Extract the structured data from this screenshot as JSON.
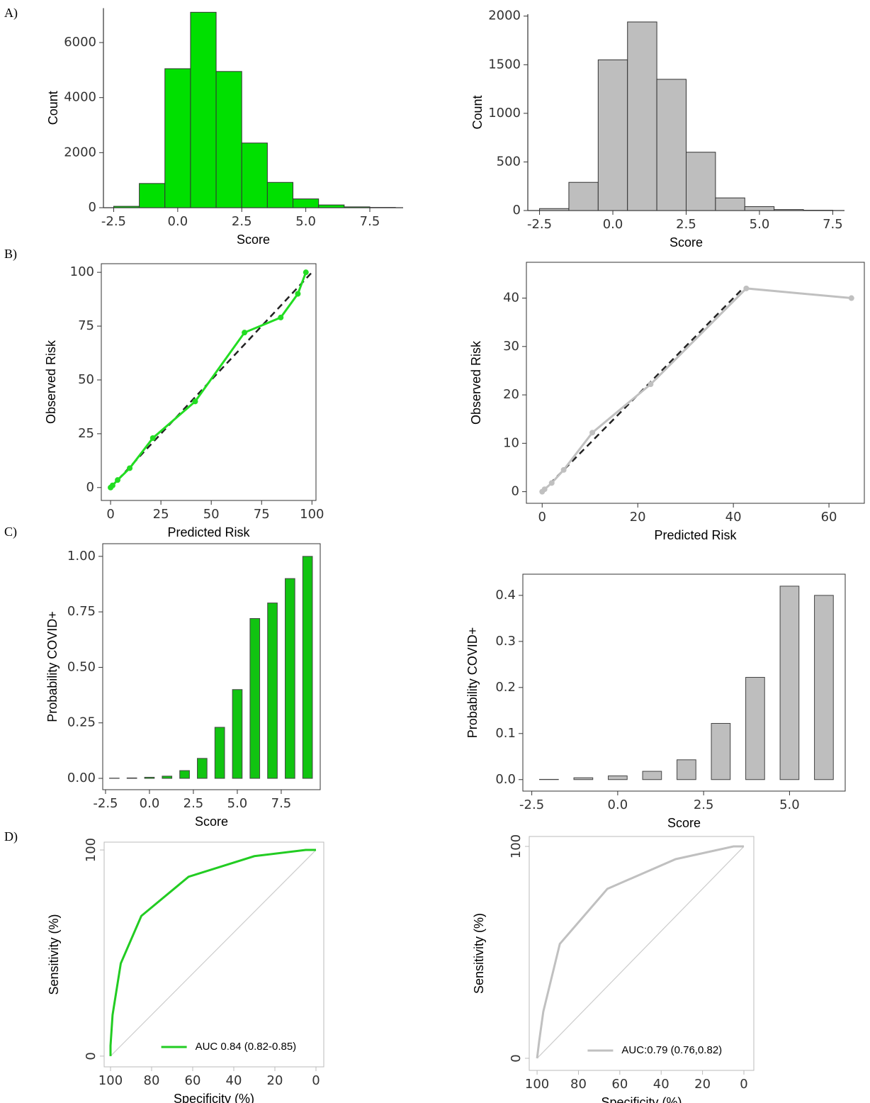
{
  "panel_labels": [
    "A)",
    "B)",
    "C)",
    "D)"
  ],
  "chart_data": [
    {
      "type": "histogram",
      "xlabel": "Score",
      "ylabel": "Count",
      "color": "#00e000",
      "bins": [
        -2.5,
        -1.5,
        -0.5,
        0.5,
        1.5,
        2.5,
        3.5,
        4.5,
        5.5,
        6.5,
        7.5,
        8.5
      ],
      "values": [
        50,
        880,
        5050,
        7100,
        4950,
        2350,
        920,
        320,
        100,
        30,
        10
      ],
      "xlim": [
        -2.9,
        8.8
      ],
      "xticks": [
        -2.5,
        {
          "value": 0,
          "label": "0.0"
        },
        2.5,
        {
          "value": 5,
          "label": "5.0"
        },
        7.5
      ],
      "ylim": [
        0,
        7250
      ],
      "yticks": [
        0,
        2000,
        4000,
        6000
      ]
    },
    {
      "type": "histogram",
      "xlabel": "Score",
      "ylabel": "Count",
      "color": "#bebebe",
      "bins": [
        -2.5,
        -1.5,
        -0.5,
        0.5,
        1.5,
        2.5,
        3.5,
        4.5,
        5.5,
        6.5,
        7.5
      ],
      "values": [
        20,
        290,
        1550,
        1940,
        1350,
        600,
        130,
        40,
        10,
        3
      ],
      "xlim": [
        -2.9,
        7.9
      ],
      "xticks": [
        -2.5,
        {
          "value": 0,
          "label": "0.0"
        },
        2.5,
        {
          "value": 5,
          "label": "5.0"
        },
        7.5
      ],
      "ylim": [
        0,
        2020
      ],
      "yticks": [
        0,
        500,
        1000,
        1500,
        2000
      ]
    },
    {
      "type": "line",
      "xlabel": "Predicted Risk",
      "ylabel": "Observed Risk",
      "markers": true,
      "reference_line": "identity",
      "x": [
        0,
        1,
        3.5,
        9.5,
        21,
        42,
        66.5,
        84.5,
        93,
        97
      ],
      "series": [
        {
          "color": "#22dd22",
          "values": [
            0,
            1,
            3.5,
            9,
            23,
            40,
            72,
            79,
            90,
            100
          ]
        }
      ],
      "xlim": [
        -4.6,
        102
      ],
      "xticks": [
        0,
        25,
        50,
        75,
        100
      ],
      "ylim": [
        -6,
        104
      ],
      "yticks": [
        0,
        25,
        50,
        75,
        100
      ]
    },
    {
      "type": "line",
      "xlabel": "Predicted Risk",
      "ylabel": "Observed Risk",
      "markers": true,
      "reference_line": "identity",
      "x": [
        0,
        0.5,
        2,
        4.5,
        10.5,
        22.7,
        42.7,
        64.7
      ],
      "series": [
        {
          "color": "#c0c0c0",
          "values": [
            0,
            0.5,
            1.8,
            4.5,
            12.2,
            22.2,
            42,
            40
          ]
        }
      ],
      "xlim": [
        -3.3,
        67.4
      ],
      "xticks": [
        0,
        20,
        40,
        60
      ],
      "ylim": [
        -2.4,
        47.4
      ],
      "yticks": [
        0,
        10,
        20,
        30,
        40
      ]
    },
    {
      "type": "bar",
      "xlabel": "Score",
      "ylabel": "Probability COVID+",
      "color": "#11c411",
      "x": [
        -2,
        -1,
        0,
        1,
        2,
        3,
        4,
        5,
        6,
        7,
        8,
        9
      ],
      "values": [
        0.001,
        0.002,
        0.005,
        0.01,
        0.035,
        0.09,
        0.23,
        0.4,
        0.72,
        0.79,
        0.9,
        1.0
      ],
      "xlim": [
        -2.66,
        9.72
      ],
      "xticks": [
        -2.5,
        {
          "value": 0,
          "label": "0.0"
        },
        2.5,
        {
          "value": 5,
          "label": "5.0"
        },
        7.5
      ],
      "ylim": [
        -0.051,
        1.057
      ],
      "yticks": [
        {
          "value": 0,
          "label": "0.00"
        },
        0.25,
        {
          "value": 0.5,
          "label": "0.50"
        },
        0.75,
        {
          "value": 1,
          "label": "1.00"
        }
      ]
    },
    {
      "type": "bar",
      "xlabel": "Score",
      "ylabel": "Probability COVID+",
      "color": "#bebebe",
      "x": [
        -2,
        -1,
        0,
        1,
        2,
        3,
        4,
        5,
        6
      ],
      "values": [
        0.0005,
        0.004,
        0.008,
        0.018,
        0.043,
        0.122,
        0.222,
        0.42,
        0.4
      ],
      "xlim": [
        -2.76,
        6.62
      ],
      "xticks": [
        -2.5,
        {
          "value": 0,
          "label": "0.0"
        },
        2.5,
        {
          "value": 5,
          "label": "5.0"
        }
      ],
      "ylim": [
        -0.025,
        0.446
      ],
      "yticks": [
        {
          "value": 0,
          "label": "0.0"
        },
        0.1,
        0.2,
        0.3,
        0.4
      ]
    },
    {
      "type": "line",
      "xlabel": "Specificity (%)",
      "ylabel": "Sensitivity (%)",
      "markers": false,
      "reference_line": "chance",
      "legend": "bottom-right",
      "x": [
        100,
        100,
        99,
        95,
        85,
        62,
        30,
        5,
        0
      ],
      "series": [
        {
          "name": "AUC 0.84 (0.82-0.85)",
          "color": "#22cc22",
          "values": [
            0,
            5,
            20,
            45,
            68,
            87,
            97,
            100,
            100
          ]
        }
      ],
      "xlim": [
        103.1,
        -3.8
      ],
      "xticks": [
        100,
        80,
        60,
        40,
        20,
        0
      ],
      "ylim": [
        -5.2,
        103.8
      ],
      "yticks": [
        0,
        100
      ]
    },
    {
      "type": "line",
      "xlabel": "Specificity (%)",
      "ylabel": "Sensitivity (%)",
      "markers": false,
      "reference_line": "chance",
      "legend": "bottom-right",
      "x": [
        100,
        99,
        97,
        89,
        66,
        33,
        5,
        0
      ],
      "series": [
        {
          "name": "AUC:0.79 (0.76,0.82)",
          "color": "#c0c0c0",
          "values": [
            0,
            8,
            22,
            54,
            80,
            94,
            100,
            100
          ]
        }
      ],
      "xlim": [
        103.8,
        -4.8
      ],
      "xticks": [
        100,
        80,
        60,
        40,
        20,
        0
      ],
      "ylim": [
        -5.7,
        104.7
      ],
      "yticks": [
        0,
        100
      ]
    }
  ]
}
